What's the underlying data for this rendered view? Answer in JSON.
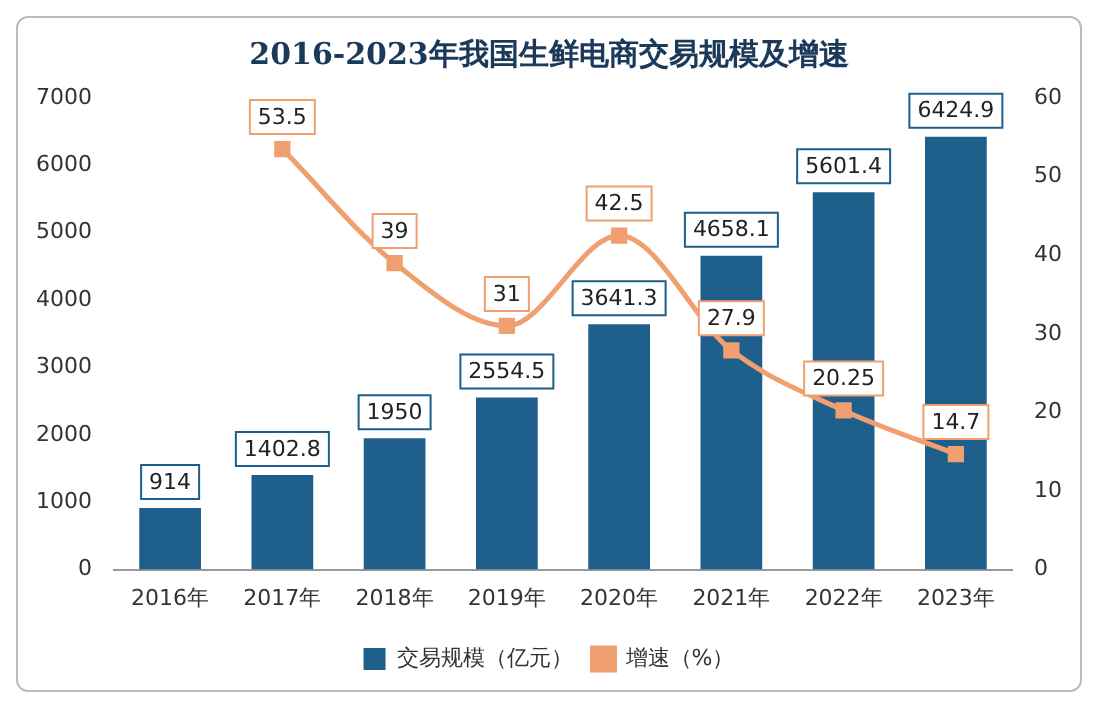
{
  "chart_data": {
    "type": "bar",
    "title": "2016-2023年我国生鲜电商交易规模及增速",
    "categories": [
      "2016年",
      "2017年",
      "2018年",
      "2019年",
      "2020年",
      "2021年",
      "2022年",
      "2023年"
    ],
    "series": [
      {
        "name": "交易规模（亿元）",
        "color": "#1f5f8b",
        "values": [
          914,
          1402.8,
          1950,
          2554.5,
          3641.3,
          4658.1,
          5601.4,
          6424.9
        ]
      },
      {
        "name": "增速（%）",
        "type": "line",
        "axis": "y2",
        "color": "#f0a070",
        "values": [
          null,
          53.5,
          39,
          31,
          42.5,
          27.9,
          20.25,
          14.7
        ]
      }
    ],
    "ylim": [
      0,
      7000
    ],
    "yticks": [
      0,
      1000,
      2000,
      3000,
      4000,
      5000,
      6000,
      7000
    ],
    "y2lim": [
      0,
      60
    ],
    "y2ticks": [
      0,
      10,
      20,
      30,
      40,
      50,
      60
    ],
    "grid": false,
    "legend": "bottom",
    "marker": "square",
    "line_style": "solid",
    "data_labels": true
  }
}
